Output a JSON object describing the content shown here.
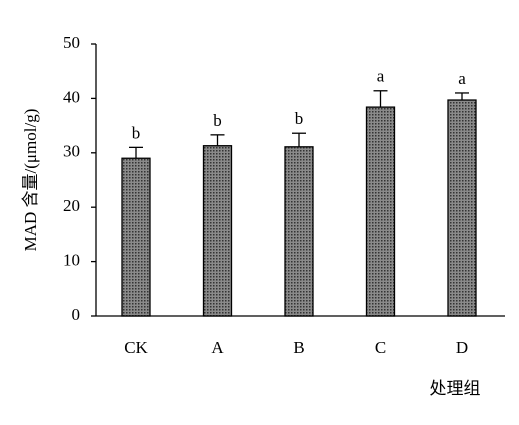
{
  "chart_data": {
    "type": "bar",
    "categories": [
      "CK",
      "A",
      "B",
      "C",
      "D"
    ],
    "values": [
      29.0,
      31.3,
      31.1,
      38.4,
      39.7
    ],
    "errors": [
      2.0,
      2.0,
      2.5,
      3.0,
      1.3
    ],
    "labels": [
      "b",
      "b",
      "b",
      "a",
      "a"
    ],
    "color": "#555555",
    "ylim": [
      0,
      50
    ],
    "yticks": [
      0,
      10,
      20,
      30,
      40,
      50
    ],
    "y_label": "MAD 含量/(μmol/g)",
    "x_label": "处理组"
  }
}
